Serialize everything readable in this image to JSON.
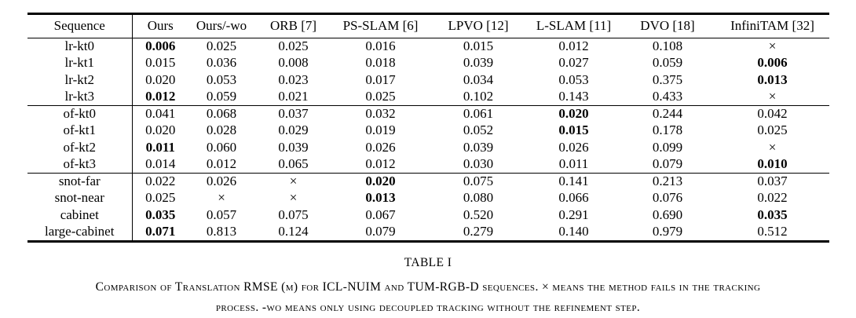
{
  "page": {
    "background": "#ffffff",
    "text_color": "#000000"
  },
  "table": {
    "columns": [
      "Sequence",
      "Ours",
      "Ours/-wo",
      "ORB [7]",
      "PS-SLAM [6]",
      "LPVO [12]",
      "L-SLAM [11]",
      "DVO [18]",
      "InfiniTAM [32]"
    ],
    "groups": [
      [
        {
          "name": "lr-kt0",
          "cells": [
            {
              "t": "0.006",
              "b": true
            },
            {
              "t": "0.025"
            },
            {
              "t": "0.025"
            },
            {
              "t": "0.016"
            },
            {
              "t": "0.015"
            },
            {
              "t": "0.012"
            },
            {
              "t": "0.108"
            },
            {
              "t": "×"
            }
          ]
        },
        {
          "name": "lr-kt1",
          "cells": [
            {
              "t": "0.015"
            },
            {
              "t": "0.036"
            },
            {
              "t": "0.008"
            },
            {
              "t": "0.018"
            },
            {
              "t": "0.039"
            },
            {
              "t": "0.027"
            },
            {
              "t": "0.059"
            },
            {
              "t": "0.006",
              "b": true
            }
          ]
        },
        {
          "name": "lr-kt2",
          "cells": [
            {
              "t": "0.020"
            },
            {
              "t": "0.053"
            },
            {
              "t": "0.023"
            },
            {
              "t": "0.017"
            },
            {
              "t": "0.034"
            },
            {
              "t": "0.053"
            },
            {
              "t": "0.375"
            },
            {
              "t": "0.013",
              "b": true
            }
          ]
        },
        {
          "name": "lr-kt3",
          "cells": [
            {
              "t": "0.012",
              "b": true
            },
            {
              "t": "0.059"
            },
            {
              "t": "0.021"
            },
            {
              "t": "0.025"
            },
            {
              "t": "0.102"
            },
            {
              "t": "0.143"
            },
            {
              "t": "0.433"
            },
            {
              "t": "×"
            }
          ]
        }
      ],
      [
        {
          "name": "of-kt0",
          "cells": [
            {
              "t": "0.041"
            },
            {
              "t": "0.068"
            },
            {
              "t": "0.037"
            },
            {
              "t": "0.032"
            },
            {
              "t": "0.061"
            },
            {
              "t": "0.020",
              "b": true
            },
            {
              "t": "0.244"
            },
            {
              "t": "0.042"
            }
          ]
        },
        {
          "name": "of-kt1",
          "cells": [
            {
              "t": "0.020"
            },
            {
              "t": "0.028"
            },
            {
              "t": "0.029"
            },
            {
              "t": "0.019"
            },
            {
              "t": "0.052"
            },
            {
              "t": "0.015",
              "b": true
            },
            {
              "t": "0.178"
            },
            {
              "t": "0.025"
            }
          ]
        },
        {
          "name": "of-kt2",
          "cells": [
            {
              "t": "0.011",
              "b": true
            },
            {
              "t": "0.060"
            },
            {
              "t": "0.039"
            },
            {
              "t": "0.026"
            },
            {
              "t": "0.039"
            },
            {
              "t": "0.026"
            },
            {
              "t": "0.099"
            },
            {
              "t": "×"
            }
          ]
        },
        {
          "name": "of-kt3",
          "cells": [
            {
              "t": "0.014"
            },
            {
              "t": "0.012"
            },
            {
              "t": "0.065"
            },
            {
              "t": "0.012"
            },
            {
              "t": "0.030"
            },
            {
              "t": "0.011"
            },
            {
              "t": "0.079"
            },
            {
              "t": "0.010",
              "b": true
            }
          ]
        }
      ],
      [
        {
          "name": "snot-far",
          "cells": [
            {
              "t": "0.022"
            },
            {
              "t": "0.026"
            },
            {
              "t": "×"
            },
            {
              "t": "0.020",
              "b": true
            },
            {
              "t": "0.075"
            },
            {
              "t": "0.141"
            },
            {
              "t": "0.213"
            },
            {
              "t": "0.037"
            }
          ]
        },
        {
          "name": "snot-near",
          "cells": [
            {
              "t": "0.025"
            },
            {
              "t": "×"
            },
            {
              "t": "×"
            },
            {
              "t": "0.013",
              "b": true
            },
            {
              "t": "0.080"
            },
            {
              "t": "0.066"
            },
            {
              "t": "0.076"
            },
            {
              "t": "0.022"
            }
          ]
        },
        {
          "name": "cabinet",
          "cells": [
            {
              "t": "0.035",
              "b": true
            },
            {
              "t": "0.057"
            },
            {
              "t": "0.075"
            },
            {
              "t": "0.067"
            },
            {
              "t": "0.520"
            },
            {
              "t": "0.291"
            },
            {
              "t": "0.690"
            },
            {
              "t": "0.035",
              "b": true
            }
          ]
        },
        {
          "name": "large-cabinet",
          "cells": [
            {
              "t": "0.071",
              "b": true
            },
            {
              "t": "0.813"
            },
            {
              "t": "0.124"
            },
            {
              "t": "0.079"
            },
            {
              "t": "0.279"
            },
            {
              "t": "0.140"
            },
            {
              "t": "0.979"
            },
            {
              "t": "0.512"
            }
          ]
        }
      ]
    ]
  },
  "caption": {
    "label": "TABLE I",
    "lines": [
      "Comparison of Translation RMSE (m) for ICL-NUIM and TUM-RGB-D sequences. × means the method fails in the tracking",
      "process. -wo means only using decoupled tracking without the refinement step."
    ]
  }
}
